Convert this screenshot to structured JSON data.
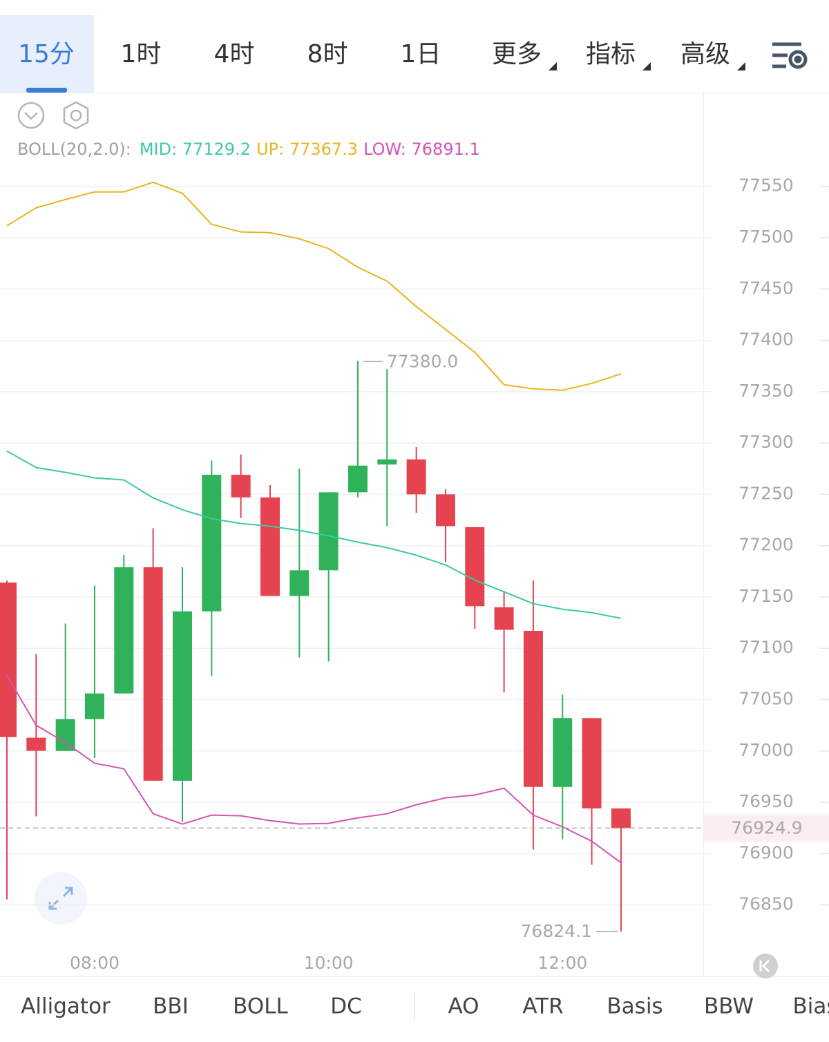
{
  "timeframes": [
    "15分",
    "1时",
    "4时",
    "8时",
    "1日"
  ],
  "menus": [
    "更多",
    "指标",
    "高级"
  ],
  "indicator_label": "BOLL(20,2.0):",
  "indicators": [
    "Alligator",
    "BBI",
    "BOLL",
    "DC",
    "AO",
    "ATR",
    "Basis",
    "BBW",
    "Bias"
  ],
  "chart_data": {
    "type": "candlestick",
    "categories": [
      null,
      null,
      null,
      "08:00",
      null,
      null,
      null,
      null,
      null,
      null,
      null,
      "10:00",
      null,
      null,
      null,
      null,
      null,
      null,
      null,
      "12:00",
      null,
      null
    ],
    "open": [
      77164,
      77012.9,
      77000,
      77031,
      77056,
      77179,
      76971,
      77136,
      77269,
      77247,
      77151,
      77176,
      77252,
      77279,
      77284,
      77250,
      77218,
      77140,
      77117,
      76965,
      77032,
      76944
    ],
    "high": [
      77166,
      77094.3,
      77124,
      77161,
      77191,
      77217,
      77179,
      77283,
      77289,
      77259,
      77275,
      77252,
      77380.0,
      77372,
      77296,
      77255,
      77218,
      77156,
      77166,
      77055,
      77032,
      76944
    ],
    "low": [
      76855.4,
      76936.2,
      77000,
      76993,
      77056,
      76971,
      76931,
      77073,
      77227,
      77151,
      77091,
      77087,
      77247,
      77219,
      77232,
      77184,
      77119,
      77057,
      76904,
      76914,
      76889,
      76824.1
    ],
    "close": [
      77013.5,
      77000.1,
      77031,
      77056,
      77179,
      76971,
      77136,
      77269,
      77247,
      77151,
      77176,
      77252,
      77278,
      77284,
      77250,
      77219,
      77141,
      77118,
      76965,
      77032,
      76944,
      76924.9
    ],
    "up_color": "#2fb25a",
    "down_color": "#e5434f",
    "series": [
      {
        "name": "MID: 77129.2",
        "color": "#3cc9a8",
        "values": [
          77292.2,
          77276.1,
          77271.4,
          77266.0,
          77264.0,
          77246.5,
          77235.0,
          77226.3,
          77221.6,
          77218.9,
          77214.9,
          77209.5,
          77203.4,
          77198.1,
          77190.7,
          77181.2,
          77166.4,
          77155.0,
          77143.5,
          77138.1,
          77134.7,
          77129.2
        ]
      },
      {
        "name": "UP: 77367.3",
        "color": "#e8b520",
        "values": [
          77511.6,
          77529.1,
          77537.2,
          77544.6,
          77544.6,
          77554.0,
          77543.3,
          77513.0,
          77505.6,
          77504.9,
          77498.9,
          77489.4,
          77471.2,
          77457.7,
          77432.9,
          77410.6,
          77388.4,
          77356.8,
          77352.7,
          77351.4,
          77358.1,
          77367.3
        ]
      },
      {
        "name": "LOW: 76891.1",
        "color": "#d653b8",
        "values": [
          77073.5,
          77025.0,
          77008.2,
          76988.0,
          76982.6,
          76938.8,
          76928.8,
          76937.5,
          76936.8,
          76932.1,
          76928.8,
          76929.4,
          76934.8,
          76938.8,
          76947.6,
          76954.3,
          76957.0,
          76963.7,
          76937.5,
          76926.1,
          76912.0,
          76891.1
        ]
      }
    ],
    "ylim": [
      76808,
      77570
    ],
    "yticks": [
      76850,
      76900,
      76950,
      77000,
      77050,
      77100,
      77150,
      77200,
      77250,
      77300,
      77350,
      77400,
      77450,
      77500,
      77550
    ],
    "grid": true,
    "last_price": 76924.9,
    "annotations": [
      {
        "value": 77380.0,
        "label": "77380.0"
      },
      {
        "value": 76824.1,
        "label": "76824.1"
      }
    ]
  }
}
